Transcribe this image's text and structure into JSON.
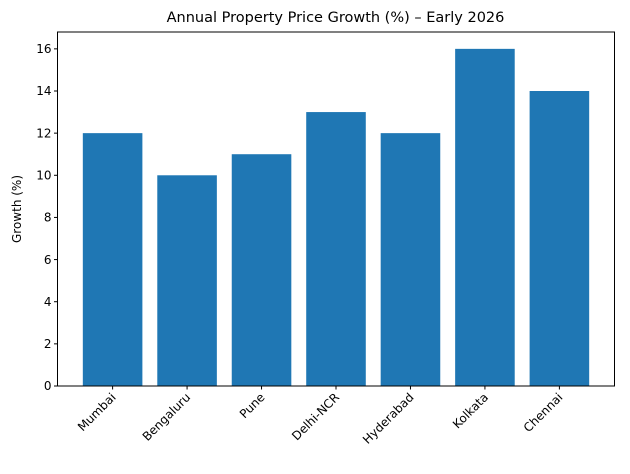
{
  "chart_data": {
    "type": "bar",
    "title": "Annual Property Price Growth (%) – Early 2026",
    "xlabel": "",
    "ylabel": "Growth (%)",
    "categories": [
      "Mumbai",
      "Bengaluru",
      "Pune",
      "Delhi-NCR",
      "Hyderabad",
      "Kolkata",
      "Chennai"
    ],
    "values": [
      12,
      10,
      11,
      13,
      12,
      16,
      14
    ],
    "ylim": [
      0,
      16.8
    ],
    "yticks": [
      0,
      2,
      4,
      6,
      8,
      10,
      12,
      14,
      16
    ],
    "grid": false,
    "bar_color": "#1f77b4",
    "xtick_rotation": 45
  }
}
